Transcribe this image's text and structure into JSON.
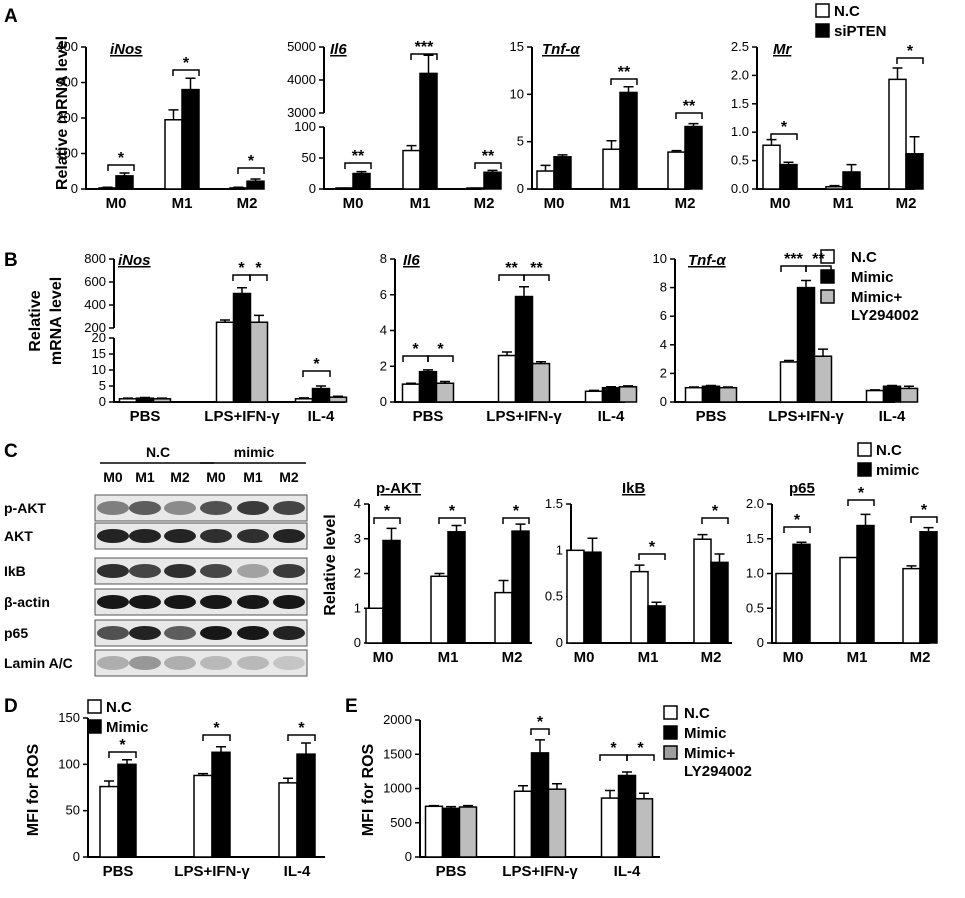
{
  "colors": {
    "nc": "#ffffff",
    "treated": "#000000",
    "ly": "#bdbdbd",
    "axis": "#000000"
  },
  "panels": {
    "A": {
      "label": "A",
      "ylabel": "Relative mRNA level",
      "legend": [
        {
          "label": "N.C",
          "color": "#ffffff"
        },
        {
          "label": "siPTEN",
          "color": "#000000"
        }
      ]
    },
    "B": {
      "label": "B",
      "ylabel1": "Relative",
      "ylabel2": "mRNA level",
      "legend": [
        {
          "label": "N.C",
          "color": "#ffffff"
        },
        {
          "label": "Mimic",
          "color": "#000000"
        },
        {
          "label": "Mimic+",
          "label2": "LY294002",
          "color": "#bdbdbd"
        }
      ]
    },
    "C": {
      "label": "C",
      "ylabel": "Relative level",
      "legend": [
        {
          "label": "N.C",
          "color": "#ffffff"
        },
        {
          "label": "mimic",
          "color": "#000000"
        }
      ],
      "blot": {
        "groups": [
          "N.C",
          "mimic"
        ],
        "lanes": [
          "M0",
          "M1",
          "M2",
          "M0",
          "M1",
          "M2"
        ],
        "rows": [
          "p-AKT",
          "AKT",
          "IkB",
          "β-actin",
          "p65",
          "Lamin A/C"
        ]
      }
    },
    "D": {
      "label": "D",
      "ylabel": "MFI for ROS",
      "legend": [
        {
          "label": "N.C",
          "color": "#ffffff"
        },
        {
          "label": "Mimic",
          "color": "#000000"
        }
      ]
    },
    "E": {
      "label": "E",
      "ylabel": "MFI for ROS",
      "legend": [
        {
          "label": "N.C",
          "color": "#ffffff"
        },
        {
          "label": "Mimic",
          "color": "#000000"
        },
        {
          "label": "Mimic+",
          "label2": "LY294002",
          "color": "#9e9e9e"
        }
      ]
    }
  },
  "chart_data": [
    {
      "id": "A1",
      "type": "bar",
      "title": "iNos",
      "categories": [
        "M0",
        "M1",
        "M2"
      ],
      "series": [
        {
          "name": "N.C",
          "values": [
            3,
            195,
            3
          ],
          "errors": [
            2,
            28,
            2
          ]
        },
        {
          "name": "siPTEN",
          "values": [
            37,
            280,
            22
          ],
          "errors": [
            8,
            32,
            6
          ]
        }
      ],
      "ylim": [
        0,
        400
      ],
      "yticks": [
        "0",
        "100",
        "200",
        "300",
        "400"
      ],
      "significance": [
        "*",
        "*",
        "*"
      ]
    },
    {
      "id": "A2",
      "type": "bar",
      "title": "Il6",
      "categories": [
        "M0",
        "M1",
        "M2"
      ],
      "series": [
        {
          "name": "N.C",
          "values": [
            1,
            62,
            1
          ],
          "errors": [
            0.5,
            8,
            0.5
          ]
        },
        {
          "name": "siPTEN",
          "values": [
            25,
            4200,
            27
          ],
          "errors": [
            3,
            550,
            3
          ]
        }
      ],
      "ylim": [
        0,
        5000
      ],
      "yticks": [
        "0",
        "50",
        "100",
        "3000",
        "4000",
        "5000"
      ],
      "significance": [
        "**",
        "***",
        "**"
      ]
    },
    {
      "id": "A3",
      "type": "bar",
      "title": "Tnf-α",
      "categories": [
        "M0",
        "M1",
        "M2"
      ],
      "series": [
        {
          "name": "N.C",
          "values": [
            1.9,
            4.2,
            3.9
          ],
          "errors": [
            0.6,
            0.9,
            0.15
          ]
        },
        {
          "name": "siPTEN",
          "values": [
            3.4,
            10.2,
            6.6
          ],
          "errors": [
            0.2,
            0.6,
            0.3
          ]
        }
      ],
      "ylim": [
        0,
        15
      ],
      "yticks": [
        "0",
        "5",
        "10",
        "15"
      ],
      "significance": [
        "",
        "**",
        "**"
      ]
    },
    {
      "id": "A4",
      "type": "bar",
      "title": "Mr",
      "categories": [
        "M0",
        "M1",
        "M2"
      ],
      "series": [
        {
          "name": "N.C",
          "values": [
            0.77,
            0.04,
            1.93
          ],
          "errors": [
            0.1,
            0.02,
            0.2
          ]
        },
        {
          "name": "siPTEN",
          "values": [
            0.43,
            0.3,
            0.62
          ],
          "errors": [
            0.04,
            0.13,
            0.3
          ]
        }
      ],
      "ylim": [
        0,
        2.5
      ],
      "yticks": [
        "0.0",
        "0.5",
        "1.0",
        "1.5",
        "2.0",
        "2.5"
      ],
      "significance": [
        "*",
        "",
        "*"
      ]
    },
    {
      "id": "B1",
      "type": "bar",
      "title": "iNos",
      "categories": [
        "PBS",
        "LPS+IFN-γ",
        "IL-4"
      ],
      "series": [
        {
          "name": "N.C",
          "values": [
            1,
            250,
            1
          ],
          "errors": [
            0.2,
            20,
            0.3
          ]
        },
        {
          "name": "Mimic",
          "values": [
            1.2,
            500,
            4.2
          ],
          "errors": [
            0.2,
            50,
            0.8
          ]
        },
        {
          "name": "Mimic+ LY294002",
          "values": [
            1,
            250,
            1.5
          ],
          "errors": [
            0.2,
            60,
            0.3
          ]
        }
      ],
      "ylim": [
        0,
        800
      ],
      "yticks": [
        "0",
        "5",
        "10",
        "15",
        "20",
        "200",
        "400",
        "600",
        "800"
      ],
      "significance": [
        "",
        "*",
        "*",
        "*"
      ]
    },
    {
      "id": "B2",
      "type": "bar",
      "title": "Il6",
      "categories": [
        "PBS",
        "LPS+IFN-γ",
        "IL-4"
      ],
      "series": [
        {
          "name": "N.C",
          "values": [
            1,
            2.6,
            0.6
          ],
          "errors": [
            0.05,
            0.2,
            0.05
          ]
        },
        {
          "name": "Mimic",
          "values": [
            1.7,
            5.9,
            0.8
          ],
          "errors": [
            0.1,
            0.55,
            0.05
          ]
        },
        {
          "name": "Mimic+ LY294002",
          "values": [
            1.05,
            2.15,
            0.85
          ],
          "errors": [
            0.1,
            0.1,
            0.05
          ]
        }
      ],
      "ylim": [
        0,
        8
      ],
      "yticks": [
        "0",
        "2",
        "4",
        "6",
        "8"
      ],
      "significance": [
        "*",
        "*",
        "**",
        "**"
      ]
    },
    {
      "id": "B3",
      "type": "bar",
      "title": "Tnf-α",
      "categories": [
        "PBS",
        "LPS+IFN-γ",
        "IL-4"
      ],
      "series": [
        {
          "name": "N.C",
          "values": [
            1,
            2.8,
            0.8
          ],
          "errors": [
            0.05,
            0.1,
            0.05
          ]
        },
        {
          "name": "Mimic",
          "values": [
            1.1,
            8,
            1.1
          ],
          "errors": [
            0.05,
            0.5,
            0.05
          ]
        },
        {
          "name": "Mimic+ LY294002",
          "values": [
            1,
            3.2,
            0.95
          ],
          "errors": [
            0.05,
            0.5,
            0.15
          ]
        }
      ],
      "ylim": [
        0,
        10
      ],
      "yticks": [
        "0",
        "2",
        "4",
        "6",
        "8",
        "10"
      ],
      "significance": [
        "***",
        "**"
      ]
    },
    {
      "id": "C1",
      "type": "bar",
      "title": "p-AKT",
      "categories": [
        "M0",
        "M1",
        "M2"
      ],
      "series": [
        {
          "name": "N.C",
          "values": [
            1,
            1.92,
            1.45
          ],
          "errors": [
            0,
            0.08,
            0.35
          ]
        },
        {
          "name": "mimic",
          "values": [
            2.95,
            3.2,
            3.22
          ],
          "errors": [
            0.35,
            0.18,
            0.2
          ]
        }
      ],
      "ylim": [
        0,
        4
      ],
      "yticks": [
        "0",
        "1",
        "2",
        "3",
        "4"
      ],
      "significance": [
        "*",
        "*",
        "*"
      ]
    },
    {
      "id": "C2",
      "type": "bar",
      "title": "IkB",
      "categories": [
        "M0",
        "M1",
        "M2"
      ],
      "series": [
        {
          "name": "N.C",
          "values": [
            1,
            0.77,
            1.12
          ],
          "errors": [
            0,
            0.07,
            0.05
          ]
        },
        {
          "name": "mimic",
          "values": [
            0.98,
            0.4,
            0.87
          ],
          "errors": [
            0.15,
            0.04,
            0.09
          ]
        }
      ],
      "ylim": [
        0,
        1.5
      ],
      "yticks": [
        "0",
        "0.5",
        "1",
        "1.5"
      ],
      "significance": [
        "",
        "*",
        "*"
      ]
    },
    {
      "id": "C3",
      "type": "bar",
      "title": "p65",
      "categories": [
        "M0",
        "M1",
        "M2"
      ],
      "series": [
        {
          "name": "N.C",
          "values": [
            1,
            1.23,
            1.07
          ],
          "errors": [
            0,
            0,
            0.04
          ]
        },
        {
          "name": "mimic",
          "values": [
            1.42,
            1.69,
            1.6
          ],
          "errors": [
            0.03,
            0.16,
            0.06
          ]
        }
      ],
      "ylim": [
        0,
        2
      ],
      "yticks": [
        "0",
        "0.5",
        "1.0",
        "1.5",
        "2.0"
      ],
      "significance": [
        "*",
        "*",
        "*"
      ]
    },
    {
      "id": "D1",
      "type": "bar",
      "title": "",
      "categories": [
        "PBS",
        "LPS+IFN-γ",
        "IL-4"
      ],
      "series": [
        {
          "name": "N.C",
          "values": [
            76,
            88,
            80
          ],
          "errors": [
            6,
            2,
            5
          ]
        },
        {
          "name": "Mimic",
          "values": [
            100,
            113,
            111
          ],
          "errors": [
            5,
            6,
            12
          ]
        }
      ],
      "ylim": [
        0,
        150
      ],
      "yticks": [
        "0",
        "50",
        "100",
        "150"
      ],
      "significance": [
        "*",
        "*",
        "*"
      ]
    },
    {
      "id": "E1",
      "type": "bar",
      "title": "",
      "categories": [
        "PBS",
        "LPS+IFN-γ",
        "IL-4"
      ],
      "series": [
        {
          "name": "N.C",
          "values": [
            740,
            960,
            860
          ],
          "errors": [
            10,
            80,
            110
          ]
        },
        {
          "name": "Mimic",
          "values": [
            710,
            1520,
            1190
          ],
          "errors": [
            25,
            190,
            50
          ]
        },
        {
          "name": "Mimic+ LY294002",
          "values": [
            730,
            990,
            850
          ],
          "errors": [
            20,
            80,
            80
          ]
        }
      ],
      "ylim": [
        0,
        2000
      ],
      "yticks": [
        "0",
        "500",
        "1000",
        "1500",
        "2000"
      ],
      "significance": [
        "*",
        "*",
        "*"
      ]
    }
  ]
}
